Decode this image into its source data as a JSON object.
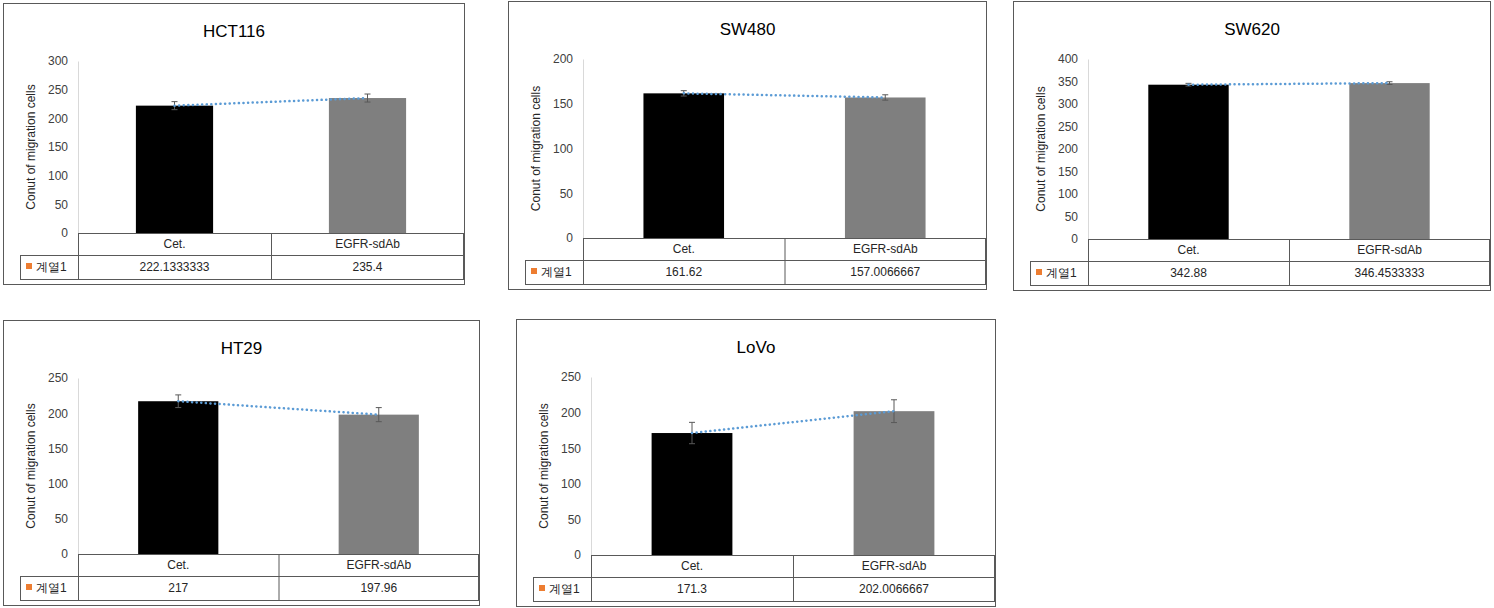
{
  "chart_data": [
    {
      "type": "bar",
      "title": "HCT116",
      "y_label": "Conut of migration cells",
      "categories": [
        "Cet.",
        "EGFR-sdAb"
      ],
      "series": [
        {
          "name": "계열1",
          "color": "#ed7d31",
          "values": [
            222.1333333,
            235.4
          ],
          "errors": [
            7,
            7
          ]
        }
      ],
      "colors": [
        "#000000",
        "#7f7f7f"
      ],
      "ylim": [
        0,
        300
      ],
      "yticks": [
        0,
        50,
        100,
        150,
        200,
        250,
        300
      ],
      "grid": false
    },
    {
      "type": "bar",
      "title": "SW480",
      "y_label": "Conut of migration cells",
      "categories": [
        "Cet.",
        "EGFR-sdAb"
      ],
      "series": [
        {
          "name": "계열1",
          "color": "#ed7d31",
          "values": [
            161.62,
            157.0066667
          ],
          "errors": [
            3,
            3
          ]
        }
      ],
      "colors": [
        "#000000",
        "#7f7f7f"
      ],
      "ylim": [
        0,
        200
      ],
      "yticks": [
        0,
        50,
        100,
        150,
        200
      ],
      "grid": false
    },
    {
      "type": "bar",
      "title": "SW620",
      "y_label": "Conut of migration cells",
      "categories": [
        "Cet.",
        "EGFR-sdAb"
      ],
      "series": [
        {
          "name": "계열1",
          "color": "#ed7d31",
          "values": [
            342.88,
            346.4533333
          ],
          "errors": [
            3,
            3
          ]
        }
      ],
      "colors": [
        "#000000",
        "#7f7f7f"
      ],
      "ylim": [
        0,
        400
      ],
      "yticks": [
        0,
        50,
        100,
        150,
        200,
        250,
        300,
        350,
        400
      ],
      "grid": false
    },
    {
      "type": "bar",
      "title": "HT29",
      "y_label": "Conut of migration cells",
      "categories": [
        "Cet.",
        "EGFR-sdAb"
      ],
      "series": [
        {
          "name": "계열1",
          "color": "#ed7d31",
          "values": [
            217,
            197.96
          ],
          "errors": [
            9,
            10
          ]
        }
      ],
      "colors": [
        "#000000",
        "#7f7f7f"
      ],
      "ylim": [
        0,
        250
      ],
      "yticks": [
        0,
        50,
        100,
        150,
        200,
        250
      ],
      "grid": false
    },
    {
      "type": "bar",
      "title": "LoVo",
      "y_label": "Conut of migration cells",
      "categories": [
        "Cet.",
        "EGFR-sdAb"
      ],
      "series": [
        {
          "name": "계열1",
          "color": "#ed7d31",
          "values": [
            171.3,
            202.0066667
          ],
          "errors": [
            15,
            16
          ]
        }
      ],
      "colors": [
        "#000000",
        "#7f7f7f"
      ],
      "ylim": [
        0,
        250
      ],
      "yticks": [
        0,
        50,
        100,
        150,
        200,
        250
      ],
      "grid": false
    }
  ]
}
